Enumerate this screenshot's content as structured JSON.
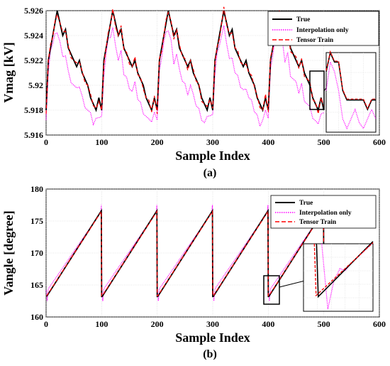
{
  "chart_data": [
    {
      "type": "line",
      "panel_label": "(a)",
      "xlabel": "Sample Index",
      "ylabel": "Vmag [kV]",
      "xlim": [
        0,
        600
      ],
      "ylim": [
        5.916,
        5.926
      ],
      "xticks": [
        "0",
        "100",
        "200",
        "300",
        "400",
        "500",
        "600"
      ],
      "yticks": [
        "5.916",
        "5.918",
        "5.92",
        "5.922",
        "5.924",
        "5.926"
      ],
      "grid": true,
      "legend_position": "top-right",
      "has_zoom_inset": true,
      "zoom_range_x": [
        476,
        500
      ],
      "zoom_range_y": [
        5.9173,
        5.9215
      ],
      "series": [
        {
          "name": "True",
          "color": "#000000",
          "style": "solid"
        },
        {
          "name": "Interpolation only",
          "color": "#ff00ff",
          "style": "dotted"
        },
        {
          "name": "Tensor Train",
          "color": "#ff0000",
          "style": "dashed"
        }
      ],
      "x": [
        0,
        4,
        8,
        12,
        16,
        20,
        25,
        30,
        35,
        40,
        45,
        50,
        55,
        60,
        65,
        70,
        75,
        80,
        85,
        90,
        95,
        100
      ],
      "true_values_one_period": [
        5.918,
        5.922,
        5.923,
        5.924,
        5.925,
        5.926,
        5.925,
        5.924,
        5.9245,
        5.923,
        5.9225,
        5.922,
        5.9215,
        5.922,
        5.921,
        5.9205,
        5.92,
        5.919,
        5.9185,
        5.918,
        5.919,
        5.918
      ],
      "interp_values_one_period": [
        5.9175,
        5.921,
        5.9225,
        5.9235,
        5.924,
        5.9245,
        5.9235,
        5.922,
        5.9225,
        5.921,
        5.9205,
        5.92,
        5.9195,
        5.92,
        5.919,
        5.9185,
        5.918,
        5.9175,
        5.917,
        5.9172,
        5.9177,
        5.9175
      ],
      "period": 100,
      "periods": 5
    },
    {
      "type": "line",
      "panel_label": "(b)",
      "xlabel": "Sample Index",
      "ylabel": "Vangle [degree]",
      "xlim": [
        0,
        600
      ],
      "ylim": [
        160,
        180
      ],
      "xticks": [
        "0",
        "100",
        "200",
        "300",
        "400",
        "500",
        "600"
      ],
      "yticks": [
        "160",
        "165",
        "170",
        "175",
        "180"
      ],
      "grid": true,
      "legend_position": "top-right",
      "has_zoom_inset": true,
      "zoom_range_x": [
        400,
        416
      ],
      "zoom_range_y": [
        162,
        168
      ],
      "series": [
        {
          "name": "True",
          "color": "#000000",
          "style": "solid"
        },
        {
          "name": "Interpolation only",
          "color": "#ff00ff",
          "style": "dotted"
        },
        {
          "name": "Tensor Train",
          "color": "#ff0000",
          "style": "dashed"
        }
      ],
      "sawtooth": {
        "low": 163.2,
        "high": 176.6,
        "period": 100,
        "periods": 5
      },
      "interp_overshoot": {
        "low": 162.5,
        "high": 177.5
      }
    }
  ]
}
